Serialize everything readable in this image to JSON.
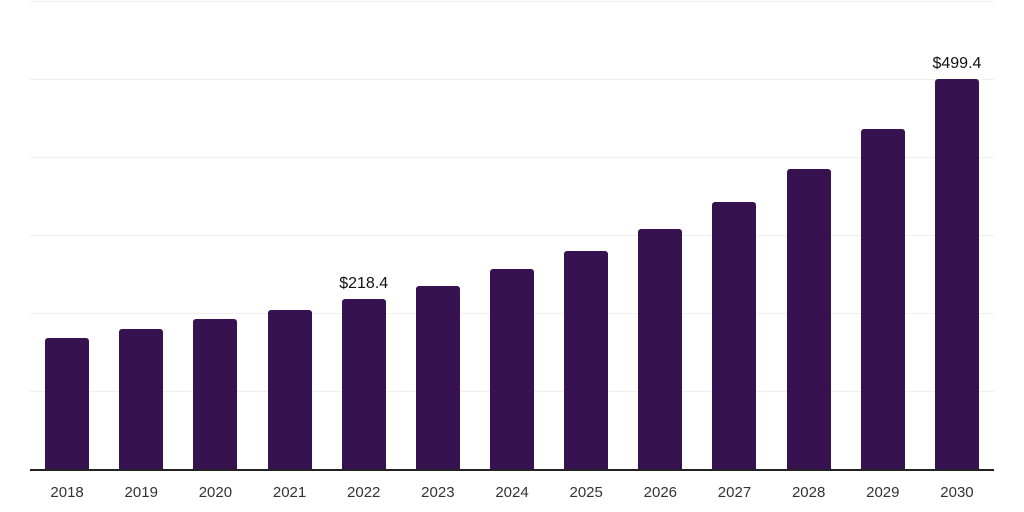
{
  "chart_data": {
    "type": "bar",
    "title": "",
    "xlabel": "",
    "ylabel": "",
    "categories": [
      "2018",
      "2019",
      "2020",
      "2021",
      "2022",
      "2023",
      "2024",
      "2025",
      "2026",
      "2027",
      "2028",
      "2029",
      "2030"
    ],
    "values": [
      167.9,
      179.5,
      191.7,
      203.9,
      218.4,
      234.6,
      256.4,
      279.5,
      307.7,
      342.9,
      384.6,
      435.9,
      499.4
    ],
    "data_labels": [
      "",
      "",
      "",
      "",
      "$218.4",
      "",
      "",
      "",
      "",
      "",
      "",
      "",
      "$499.4"
    ],
    "ylim": [
      0,
      600
    ],
    "gridline_step": 100,
    "grid": "horizontal-only",
    "legend": "none",
    "colors": {
      "bar": "#371250",
      "gridline": "#f0f0f0",
      "axis_line": "#222222",
      "tick_label": "#333333",
      "value_label": "#111111",
      "background": "#ffffff"
    }
  }
}
